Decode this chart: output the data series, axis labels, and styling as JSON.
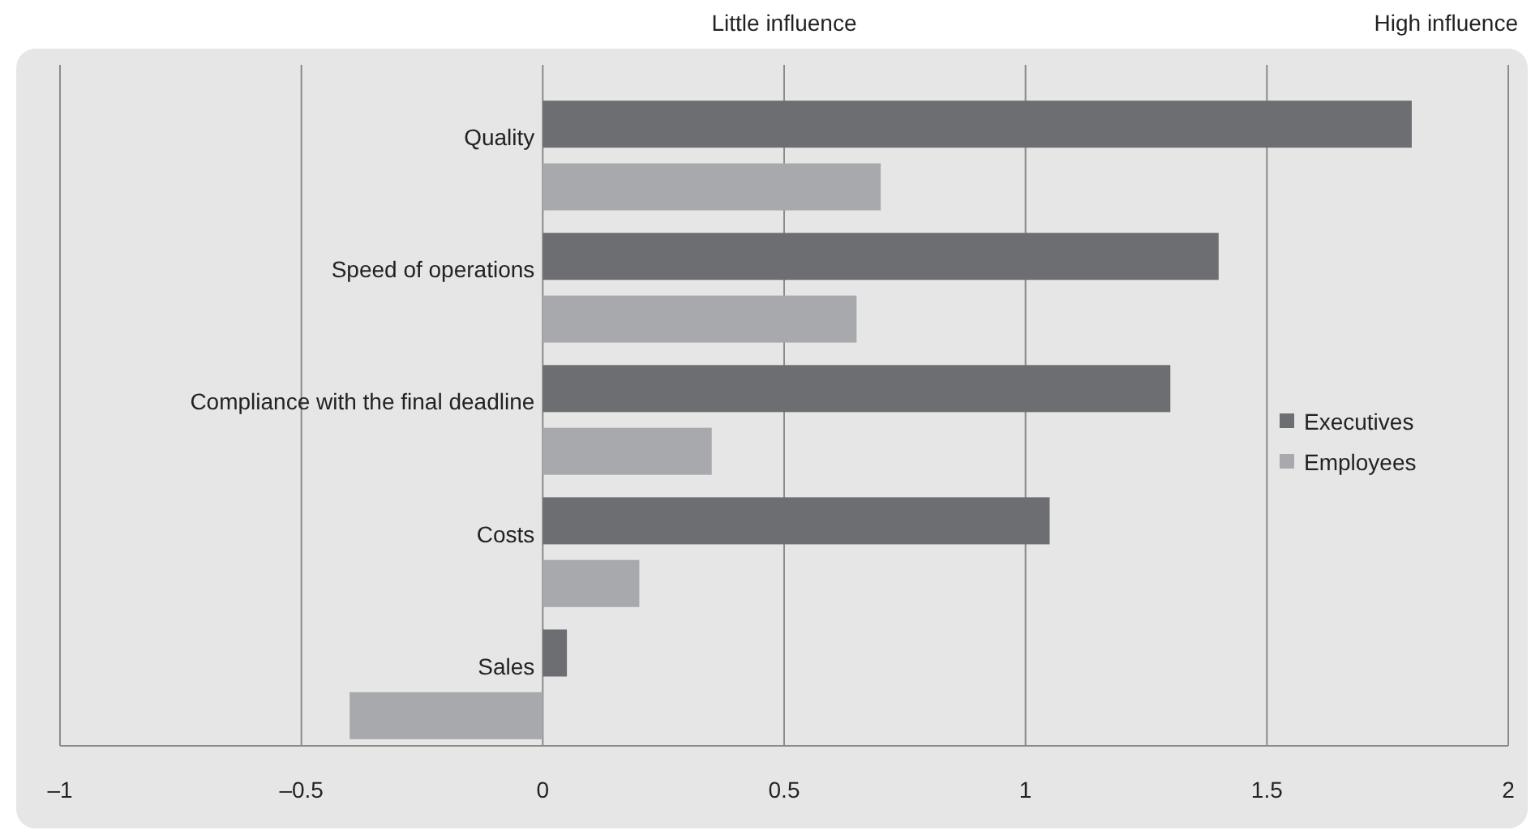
{
  "chart_data": {
    "type": "bar",
    "orientation": "horizontal",
    "categories": [
      "Quality",
      "Speed of operations",
      "Compliance with the final deadline",
      "Costs",
      "Sales"
    ],
    "series": [
      {
        "name": "Executives",
        "color": "#6d6e71",
        "values": [
          1.8,
          1.4,
          1.3,
          1.05,
          0.05
        ]
      },
      {
        "name": "Employees",
        "color": "#a7a9ac",
        "values": [
          0.7,
          0.65,
          0.35,
          0.2,
          -0.4
        ]
      }
    ],
    "xlim": [
      -1,
      2
    ],
    "xticks": [
      {
        "value": -1,
        "label": "–1"
      },
      {
        "value": -0.5,
        "label": "–0.5"
      },
      0,
      0.5,
      1,
      1.5,
      2
    ],
    "grid": "x",
    "legend": "right",
    "annotations": [
      "Little influence",
      "High influence"
    ]
  }
}
